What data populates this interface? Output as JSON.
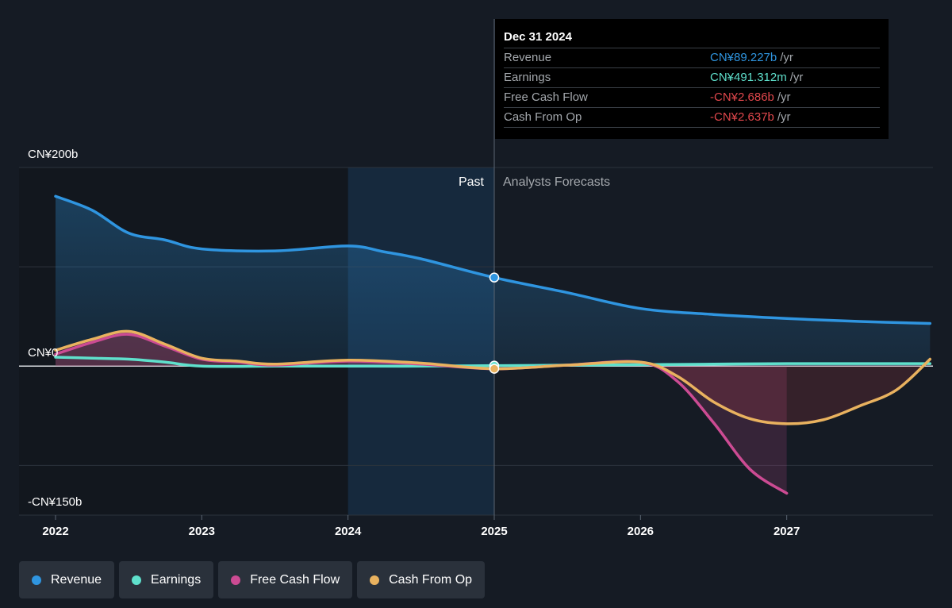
{
  "chart_data": {
    "type": "line",
    "y_axis": {
      "labels": [
        "CN¥200b",
        "CN¥0",
        "-CN¥150b"
      ],
      "ylim": [
        -150,
        200
      ],
      "unit": "CN¥ billions"
    },
    "x_axis": {
      "ticks": [
        "2022",
        "2023",
        "2024",
        "2025",
        "2026",
        "2027"
      ],
      "xlim": [
        2022,
        2028
      ]
    },
    "period_labels": {
      "past": "Past",
      "forecast": "Analysts Forecasts"
    },
    "divider_x": 2025,
    "past_highlight_start": 2024,
    "series": [
      {
        "name": "Revenue",
        "color": "#2f95e0",
        "points": [
          [
            2022.0,
            171
          ],
          [
            2022.25,
            157
          ],
          [
            2022.5,
            134
          ],
          [
            2022.75,
            127
          ],
          [
            2023.0,
            118
          ],
          [
            2023.5,
            116
          ],
          [
            2024.0,
            121
          ],
          [
            2024.25,
            115
          ],
          [
            2024.5,
            108
          ],
          [
            2025.0,
            89.2
          ],
          [
            2025.5,
            74
          ],
          [
            2026.0,
            58
          ],
          [
            2026.5,
            52
          ],
          [
            2027.0,
            48
          ],
          [
            2027.5,
            45
          ],
          [
            2027.98,
            43
          ]
        ]
      },
      {
        "name": "Earnings",
        "color": "#5fe0cc",
        "points": [
          [
            2022.0,
            9
          ],
          [
            2022.25,
            8
          ],
          [
            2022.5,
            7
          ],
          [
            2022.75,
            4
          ],
          [
            2023.0,
            0
          ],
          [
            2023.5,
            0
          ],
          [
            2024.0,
            0
          ],
          [
            2024.5,
            0
          ],
          [
            2025.0,
            0.49
          ],
          [
            2025.5,
            1
          ],
          [
            2026.0,
            1.5
          ],
          [
            2026.5,
            2
          ],
          [
            2027.0,
            2.5
          ],
          [
            2027.98,
            2.5
          ]
        ]
      },
      {
        "name": "Free Cash Flow",
        "color": "#cc4b93",
        "points": [
          [
            2022.0,
            12
          ],
          [
            2022.25,
            24
          ],
          [
            2022.5,
            32
          ],
          [
            2022.75,
            20
          ],
          [
            2023.0,
            7
          ],
          [
            2023.25,
            4
          ],
          [
            2023.5,
            1
          ],
          [
            2024.0,
            5
          ],
          [
            2024.5,
            2
          ],
          [
            2025.0,
            -2.69
          ],
          [
            2025.5,
            1
          ],
          [
            2026.0,
            4
          ],
          [
            2026.25,
            -15
          ],
          [
            2026.5,
            -57
          ],
          [
            2026.75,
            -104
          ],
          [
            2027.0,
            -128
          ]
        ]
      },
      {
        "name": "Cash From Op",
        "color": "#e9b25f",
        "points": [
          [
            2022.0,
            16
          ],
          [
            2022.25,
            27
          ],
          [
            2022.5,
            35
          ],
          [
            2022.75,
            22
          ],
          [
            2023.0,
            8
          ],
          [
            2023.25,
            5
          ],
          [
            2023.5,
            2
          ],
          [
            2024.0,
            6
          ],
          [
            2024.5,
            3
          ],
          [
            2025.0,
            -2.64
          ],
          [
            2025.5,
            1
          ],
          [
            2026.0,
            4
          ],
          [
            2026.25,
            -10
          ],
          [
            2026.5,
            -36
          ],
          [
            2026.75,
            -53
          ],
          [
            2027.0,
            -58
          ],
          [
            2027.25,
            -54
          ],
          [
            2027.5,
            -40
          ],
          [
            2027.75,
            -24
          ],
          [
            2027.98,
            7
          ]
        ]
      }
    ],
    "tooltip": {
      "date": "Dec 31 2024",
      "rows": [
        {
          "name": "Revenue",
          "value": "CN¥89.227b",
          "unit": "/yr",
          "color": "#2f95e0"
        },
        {
          "name": "Earnings",
          "value": "CN¥491.312m",
          "unit": "/yr",
          "color": "#5fe0cc"
        },
        {
          "name": "Free Cash Flow",
          "value": "-CN¥2.686b",
          "unit": "/yr",
          "color": "#e0474c"
        },
        {
          "name": "Cash From Op",
          "value": "-CN¥2.637b",
          "unit": "/yr",
          "color": "#e0474c"
        }
      ]
    }
  },
  "legend": [
    {
      "label": "Revenue",
      "color": "#2f95e0"
    },
    {
      "label": "Earnings",
      "color": "#5fe0cc"
    },
    {
      "label": "Free Cash Flow",
      "color": "#cc4b93"
    },
    {
      "label": "Cash From Op",
      "color": "#e9b25f"
    }
  ]
}
